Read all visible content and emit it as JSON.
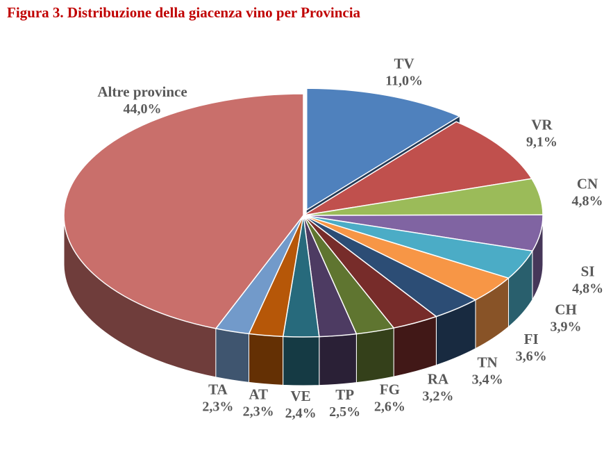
{
  "chart_data": {
    "type": "pie",
    "title": "Figura 3. Distribuzione della giacenza vino per Provincia",
    "unit": "%",
    "slices": [
      {
        "label": "TV",
        "value": 11.0,
        "display": "11,0%",
        "color": "#4f81bd"
      },
      {
        "label": "VR",
        "value": 9.1,
        "display": "9,1%",
        "color": "#c0504d"
      },
      {
        "label": "CN",
        "value": 4.8,
        "display": "4,8%",
        "color": "#9bbb59"
      },
      {
        "label": "SI",
        "value": 4.8,
        "display": "4,8%",
        "color": "#8064a2"
      },
      {
        "label": "CH",
        "value": 3.9,
        "display": "3,9%",
        "color": "#4bacc6"
      },
      {
        "label": "FI",
        "value": 3.6,
        "display": "3,6%",
        "color": "#f79646"
      },
      {
        "label": "TN",
        "value": 3.4,
        "display": "3,4%",
        "color": "#2c4d75"
      },
      {
        "label": "RA",
        "value": 3.2,
        "display": "3,2%",
        "color": "#772c2a"
      },
      {
        "label": "FG",
        "value": 2.6,
        "display": "2,6%",
        "color": "#5f7530"
      },
      {
        "label": "TP",
        "value": 2.5,
        "display": "2,5%",
        "color": "#4d3b62"
      },
      {
        "label": "VE",
        "value": 2.4,
        "display": "2,4%",
        "color": "#276a7c"
      },
      {
        "label": "AT",
        "value": 2.3,
        "display": "2,3%",
        "color": "#b65708"
      },
      {
        "label": "TA",
        "value": 2.3,
        "display": "2,3%",
        "color": "#729aca"
      },
      {
        "label": "Altre province",
        "value": 44.0,
        "display": "44,0%",
        "color": "#c96f6b"
      }
    ]
  }
}
